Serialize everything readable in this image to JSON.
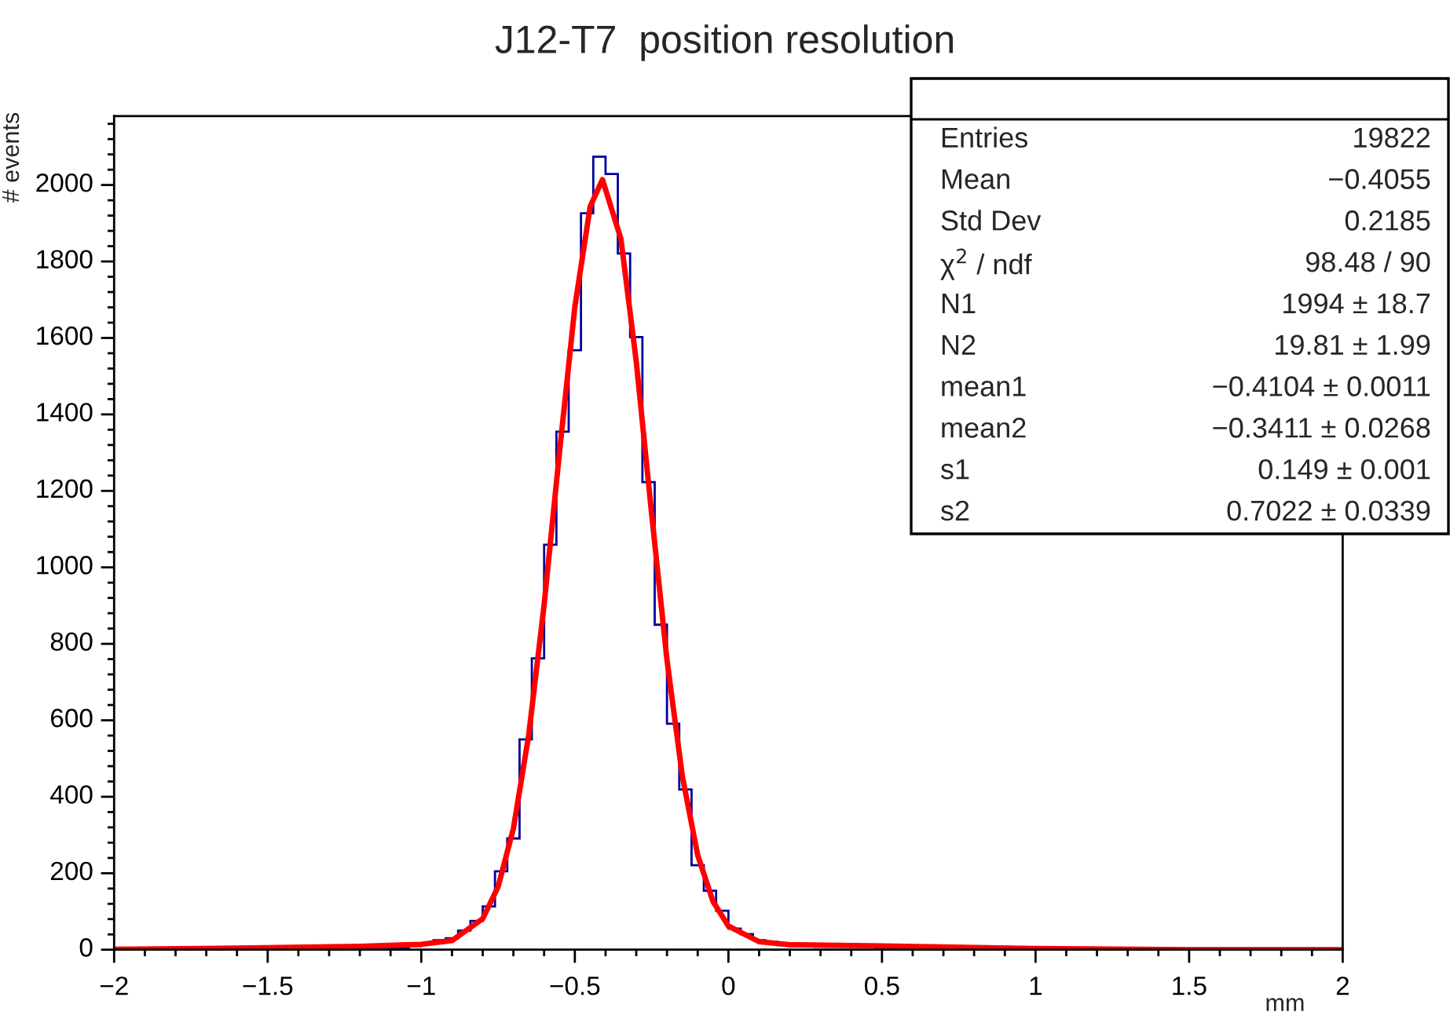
{
  "chart_data": {
    "type": "histogram",
    "title": "J12-T7  position resolution",
    "xlabel": "mm",
    "ylabel": "# events",
    "bins": [
      -2.0,
      -1.96,
      -1.92,
      -1.88,
      -1.84,
      -1.8,
      -1.76,
      -1.72,
      -1.68,
      -1.64,
      -1.6,
      -1.56,
      -1.52,
      -1.48,
      -1.44,
      -1.4,
      -1.36,
      -1.32,
      -1.28,
      -1.24,
      -1.2,
      -1.16,
      -1.12,
      -1.08,
      -1.04,
      -1.0,
      -0.96,
      -0.92,
      -0.88,
      -0.84,
      -0.8,
      -0.76,
      -0.72,
      -0.68,
      -0.64,
      -0.6,
      -0.56,
      -0.52,
      -0.48,
      -0.44,
      -0.4,
      -0.36,
      -0.32,
      -0.28,
      -0.24,
      -0.2,
      -0.16,
      -0.12,
      -0.08,
      -0.04,
      0.0,
      0.04,
      0.08,
      0.12,
      0.16,
      0.2,
      0.24,
      0.28,
      0.32,
      0.36,
      0.4,
      0.44,
      0.48,
      0.52,
      0.56,
      0.6,
      0.64,
      0.68,
      0.72,
      0.76,
      0.8,
      0.84,
      0.88,
      0.92,
      0.96,
      1.0,
      1.04,
      1.08,
      1.12,
      1.16,
      1.2,
      1.24,
      1.28,
      1.32,
      1.36,
      1.4,
      1.44,
      1.48,
      1.52,
      1.56,
      1.6,
      1.64,
      1.68,
      1.72,
      1.76,
      1.8,
      1.84,
      1.88,
      1.92,
      1.96,
      2.0
    ],
    "values": [
      0,
      0,
      0,
      0,
      0,
      0,
      0,
      0,
      0,
      0,
      0,
      0,
      0,
      0,
      0,
      0,
      0,
      0,
      0,
      0,
      0,
      5,
      5,
      5,
      10,
      15,
      25,
      30,
      50,
      75,
      113,
      205,
      291,
      550,
      762,
      1059,
      1355,
      1568,
      1926,
      2074,
      2029,
      1821,
      1602,
      1223,
      850,
      591,
      419,
      221,
      154,
      102,
      55,
      41,
      25,
      20,
      12,
      10,
      10,
      8,
      8,
      8,
      8,
      8,
      0,
      0,
      0,
      0,
      0,
      0,
      0,
      0,
      0,
      0,
      0,
      0,
      0,
      0,
      0,
      0,
      0,
      0,
      0,
      0,
      0,
      0,
      0,
      0,
      0,
      0,
      0,
      0,
      0,
      0,
      0,
      0,
      0,
      0,
      0,
      0,
      0,
      0
    ],
    "color": "#000099",
    "series": [
      {
        "type": "line",
        "color": "#ff0000",
        "x": [
          -2,
          -1.6,
          -1.2,
          -1.0,
          -0.9,
          -0.8,
          -0.75,
          -0.7,
          -0.65,
          -0.6,
          -0.55,
          -0.5,
          -0.45,
          -0.41,
          -0.35,
          -0.3,
          -0.25,
          -0.2,
          -0.15,
          -0.1,
          -0.05,
          0,
          0.1,
          0.2,
          0.5,
          1.0,
          1.5,
          2
        ],
        "values": [
          1,
          4,
          9,
          14,
          24,
          81,
          164,
          317,
          562,
          902,
          1301,
          1681,
          1944,
          2014,
          1859,
          1538,
          1140,
          758,
          454,
          247,
          126,
          62,
          21,
          13,
          10,
          3,
          0,
          0
        ]
      }
    ],
    "xlim": [
      -2,
      2
    ],
    "ylim": [
      0,
      2180
    ],
    "xticks": [
      -2,
      -1.5,
      -1,
      -0.5,
      0,
      0.5,
      1,
      1.5,
      2
    ],
    "yticks": [
      0,
      200,
      400,
      600,
      800,
      1000,
      1200,
      1400,
      1600,
      1800,
      2000
    ],
    "grid": false,
    "line_style": "solid",
    "annotations": [
      "Entries\t19822",
      "Mean\t−0.4055",
      "Std Dev\t0.2185",
      "χ$^{2}$ / ndf\t98.48 / 90",
      "N1\t1994 ± 18.7",
      "N2\t19.81 ± 1.99",
      "mean1\t−0.4104 ± 0.0011",
      "mean2\t−0.3411 ± 0.0268",
      "s1\t0.149 ± 0.001",
      "s2\t0.7022 ± 0.0339"
    ]
  }
}
